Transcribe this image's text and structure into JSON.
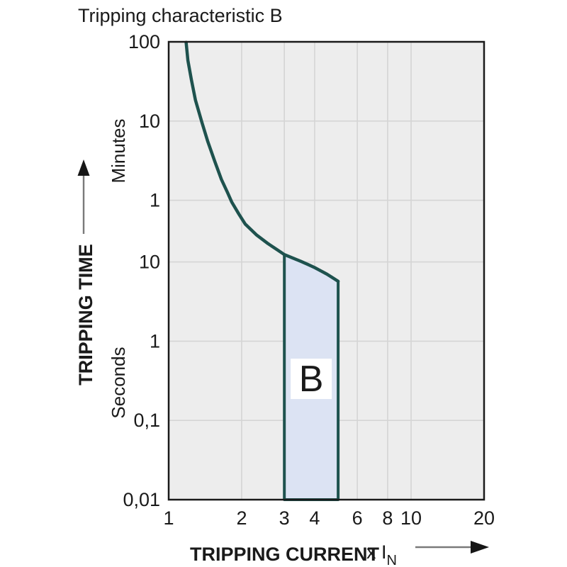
{
  "title": "Tripping characteristic B",
  "chart_data": {
    "type": "line",
    "title": "Tripping characteristic B",
    "x_axis": {
      "label": "TRIPPING CURRENT",
      "unit_prefix": "x I",
      "unit_subscript": "N",
      "scale": "log",
      "range": [
        1,
        20
      ],
      "ticks": [
        1,
        2,
        3,
        4,
        6,
        8,
        10,
        20
      ],
      "gridlines": [
        2,
        3,
        4,
        6,
        8,
        10
      ]
    },
    "y_axis": {
      "label": "TRIPPING TIME",
      "scale": "log",
      "range_seconds": [
        0.01,
        6000
      ],
      "unit_groups": [
        {
          "label": "Minutes"
        },
        {
          "label": "Seconds"
        }
      ],
      "ticks": [
        {
          "label": "100",
          "seconds": 6000
        },
        {
          "label": "10",
          "seconds": 600
        },
        {
          "label": "1",
          "seconds": 60
        },
        {
          "label": "10",
          "seconds": 10
        },
        {
          "label": "1",
          "seconds": 1
        },
        {
          "label": "0,1",
          "seconds": 0.1
        },
        {
          "label": "0,01",
          "seconds": 0.01
        }
      ],
      "gridlines_seconds": [
        600,
        60,
        10,
        1,
        0.1
      ]
    },
    "series": [
      {
        "name": "thermal-trip-curve",
        "points": [
          [
            1.18,
            5900
          ],
          [
            1.2,
            3500
          ],
          [
            1.24,
            2000
          ],
          [
            1.29,
            1100
          ],
          [
            1.37,
            580
          ],
          [
            1.45,
            330
          ],
          [
            1.55,
            185
          ],
          [
            1.65,
            110
          ],
          [
            1.75,
            75
          ],
          [
            1.82,
            57
          ],
          [
            1.95,
            40
          ],
          [
            2.07,
            30
          ],
          [
            2.3,
            22
          ],
          [
            2.57,
            17
          ],
          [
            2.8,
            14.3
          ],
          [
            3.0,
            12.4
          ],
          [
            3.25,
            11.2
          ],
          [
            3.5,
            10.2
          ],
          [
            3.75,
            9.3
          ],
          [
            4.0,
            8.5
          ],
          [
            4.25,
            7.7
          ],
          [
            4.5,
            7.0
          ],
          [
            4.75,
            6.3
          ],
          [
            5.0,
            5.7
          ]
        ]
      }
    ],
    "band": {
      "label": "B",
      "x_range": [
        3,
        5
      ],
      "bottom_seconds": 0.01
    },
    "colors": {
      "curve": "#1e524e",
      "band_fill": "#dce3f3",
      "band_label_bg": "#ffffff",
      "plot_background": "#ededed",
      "gridline": "#d5d5d5",
      "border": "#1a1a1a",
      "text": "#1a1a1a"
    }
  }
}
